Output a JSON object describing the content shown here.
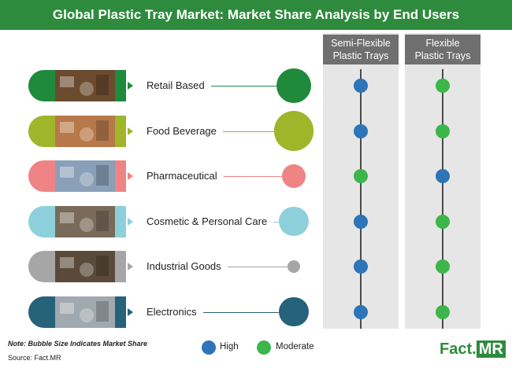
{
  "header": {
    "title": "Global Plastic Tray Market: Market Share Analysis by End Users"
  },
  "columns": [
    {
      "line1": "Semi-Flexible",
      "line2": "Plastic Trays"
    },
    {
      "line1": "Flexible",
      "line2": "Plastic Trays"
    }
  ],
  "legend": {
    "high": "High",
    "moderate": "Moderate"
  },
  "colors": {
    "high": "#2e74b8",
    "moderate": "#3cb64a",
    "brand": "#2e8b3d"
  },
  "footer": {
    "note": "Note: Bubble Size Indicates Market Share",
    "source": "Source: Fact.MR",
    "logo_fact": "Fact.",
    "logo_mr": "MR"
  },
  "chart_data": {
    "type": "table",
    "title": "Global Plastic Tray Market: Market Share Analysis by End Users",
    "rows": [
      {
        "label": "Retail Based",
        "color": "#1f8a3b",
        "share_rank": 5,
        "semi_flexible": "High",
        "flexible": "Moderate"
      },
      {
        "label": "Food  Beverage",
        "color": "#9fb52a",
        "share_rank": 6,
        "semi_flexible": "High",
        "flexible": "Moderate"
      },
      {
        "label": "Pharmaceutical",
        "color": "#ef8484",
        "share_rank": 3,
        "semi_flexible": "Moderate",
        "flexible": "High"
      },
      {
        "label": "Cosmetic & Personal Care",
        "color": "#8dd0dc",
        "share_rank": 4,
        "semi_flexible": "High",
        "flexible": "Moderate"
      },
      {
        "label": "Industrial Goods",
        "color": "#a6a6a6",
        "share_rank": 1,
        "semi_flexible": "High",
        "flexible": "Moderate"
      },
      {
        "label": "Electronics",
        "color": "#26627a",
        "share_rank": 4,
        "semi_flexible": "High",
        "flexible": "Moderate"
      }
    ]
  }
}
